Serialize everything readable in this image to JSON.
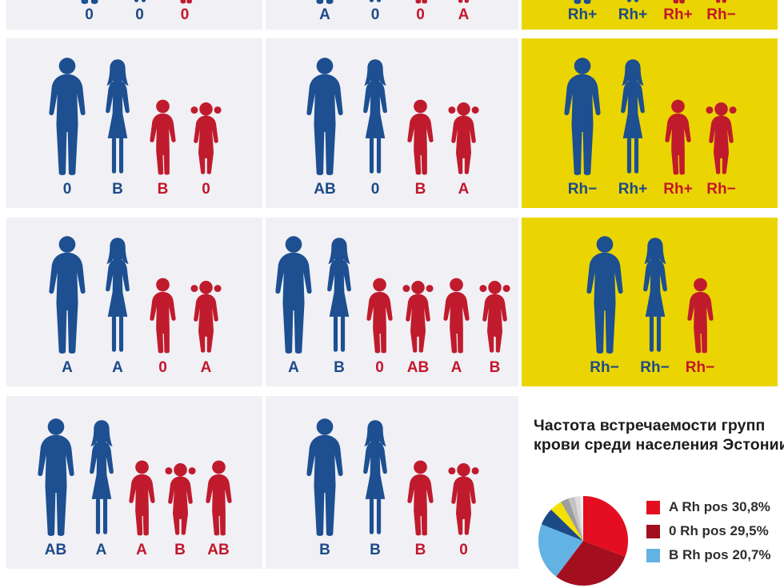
{
  "palette": {
    "page_bg": "#ffffff",
    "cell_bg": "#f0f0f5",
    "yellow_bg": "#ead503",
    "figure_blue": "#1d4f91",
    "figure_red": "#c01b2d",
    "label_blue": "#1d4a87",
    "label_red": "#c3172b",
    "title_color": "#1c1c1c",
    "legend_text": "#2e2e2e"
  },
  "cells": [
    {
      "row": 0,
      "col": 0,
      "bg": "gray",
      "clipped": true,
      "members": [
        {
          "figure": "man",
          "color": "blue",
          "label": "0"
        },
        {
          "figure": "woman",
          "color": "blue",
          "label": "0"
        },
        {
          "figure": "boy",
          "color": "red",
          "label": "0"
        }
      ]
    },
    {
      "row": 0,
      "col": 1,
      "bg": "gray",
      "clipped": true,
      "members": [
        {
          "figure": "man",
          "color": "blue",
          "label": "A"
        },
        {
          "figure": "woman",
          "color": "blue",
          "label": "0"
        },
        {
          "figure": "boy",
          "color": "red",
          "label": "0"
        },
        {
          "figure": "girl",
          "color": "red",
          "label": "A"
        }
      ]
    },
    {
      "row": 0,
      "col": 2,
      "bg": "yellow",
      "clipped": true,
      "members": [
        {
          "figure": "man",
          "color": "blue",
          "label": "Rh+"
        },
        {
          "figure": "woman",
          "color": "blue",
          "label": "Rh+"
        },
        {
          "figure": "boy",
          "color": "red",
          "label": "Rh+"
        },
        {
          "figure": "girl",
          "color": "red",
          "label": "Rh−"
        }
      ]
    },
    {
      "row": 1,
      "col": 0,
      "bg": "gray",
      "clipped": false,
      "members": [
        {
          "figure": "man",
          "color": "blue",
          "label": "0"
        },
        {
          "figure": "woman",
          "color": "blue",
          "label": "B"
        },
        {
          "figure": "boy",
          "color": "red",
          "label": "B"
        },
        {
          "figure": "girl",
          "color": "red",
          "label": "0"
        }
      ]
    },
    {
      "row": 1,
      "col": 1,
      "bg": "gray",
      "clipped": false,
      "members": [
        {
          "figure": "man",
          "color": "blue",
          "label": "AB"
        },
        {
          "figure": "woman",
          "color": "blue",
          "label": "0"
        },
        {
          "figure": "boy",
          "color": "red",
          "label": "B"
        },
        {
          "figure": "girl",
          "color": "red",
          "label": "A"
        }
      ]
    },
    {
      "row": 1,
      "col": 2,
      "bg": "yellow",
      "clipped": false,
      "members": [
        {
          "figure": "man",
          "color": "blue",
          "label": "Rh−"
        },
        {
          "figure": "woman",
          "color": "blue",
          "label": "Rh+"
        },
        {
          "figure": "boy",
          "color": "red",
          "label": "Rh+"
        },
        {
          "figure": "girl",
          "color": "red",
          "label": "Rh−"
        }
      ]
    },
    {
      "row": 2,
      "col": 0,
      "bg": "gray",
      "clipped": false,
      "members": [
        {
          "figure": "man",
          "color": "blue",
          "label": "A"
        },
        {
          "figure": "woman",
          "color": "blue",
          "label": "A"
        },
        {
          "figure": "boy",
          "color": "red",
          "label": "0"
        },
        {
          "figure": "girl",
          "color": "red",
          "label": "A"
        }
      ]
    },
    {
      "row": 2,
      "col": 1,
      "bg": "gray",
      "clipped": false,
      "members": [
        {
          "figure": "man",
          "color": "blue",
          "label": "A"
        },
        {
          "figure": "woman",
          "color": "blue",
          "label": "B"
        },
        {
          "figure": "boy",
          "color": "red",
          "label": "0"
        },
        {
          "figure": "girl",
          "color": "red",
          "label": "AB"
        },
        {
          "figure": "boy",
          "color": "red",
          "label": "A"
        },
        {
          "figure": "girl",
          "color": "red",
          "label": "B"
        }
      ]
    },
    {
      "row": 2,
      "col": 2,
      "bg": "yellow",
      "clipped": false,
      "members": [
        {
          "figure": "man",
          "color": "blue",
          "label": "Rh−"
        },
        {
          "figure": "woman",
          "color": "blue",
          "label": "Rh−"
        },
        {
          "figure": "boy",
          "color": "red",
          "label": "Rh−"
        }
      ]
    },
    {
      "row": 3,
      "col": 0,
      "bg": "gray",
      "clipped": false,
      "members": [
        {
          "figure": "man",
          "color": "blue",
          "label": "AB"
        },
        {
          "figure": "woman",
          "color": "blue",
          "label": "A"
        },
        {
          "figure": "boy",
          "color": "red",
          "label": "A"
        },
        {
          "figure": "girl",
          "color": "red",
          "label": "B"
        },
        {
          "figure": "boy",
          "color": "red",
          "label": "AB"
        }
      ]
    },
    {
      "row": 3,
      "col": 1,
      "bg": "gray",
      "clipped": false,
      "members": [
        {
          "figure": "man",
          "color": "blue",
          "label": "B"
        },
        {
          "figure": "woman",
          "color": "blue",
          "label": "B"
        },
        {
          "figure": "boy",
          "color": "red",
          "label": "B"
        },
        {
          "figure": "girl",
          "color": "red",
          "label": "0"
        }
      ]
    }
  ],
  "info": {
    "title_line1": "Частота встречаемости групп",
    "title_line2": "крови среди населения Эстонии"
  },
  "chart_data": {
    "type": "pie",
    "title": "Частота встречаемости групп крови среди населения Эстонии",
    "legend_position": "right",
    "start_angle_deg": 0,
    "direction": "clockwise",
    "slices": [
      {
        "label": "A Rh pos",
        "value": 30.8,
        "display": "A Rh pos 30,8%",
        "color": "#e30f20",
        "in_legend": true
      },
      {
        "label": "0 Rh pos",
        "value": 29.5,
        "display": "0 Rh pos 29,5%",
        "color": "#a30f1e",
        "in_legend": true
      },
      {
        "label": "B Rh pos",
        "value": 20.7,
        "display": "B Rh pos 20,7%",
        "color": "#62b2e4",
        "in_legend": true
      },
      {
        "label": "",
        "value": 6.3,
        "display": "",
        "color": "#1b4a85",
        "in_legend": false
      },
      {
        "label": "",
        "value": 4.4,
        "display": "",
        "color": "#f4e003",
        "in_legend": false
      },
      {
        "label": "",
        "value": 2.9,
        "display": "",
        "color": "#9d9d9d",
        "in_legend": false
      },
      {
        "label": "",
        "value": 2.4,
        "display": "",
        "color": "#c3c3c3",
        "in_legend": false
      },
      {
        "label": "",
        "value": 1.9,
        "display": "",
        "color": "#dcdcdc",
        "in_legend": false
      },
      {
        "label": "",
        "value": 1.1,
        "display": "",
        "color": "#f2f2f2",
        "in_legend": false
      }
    ]
  }
}
